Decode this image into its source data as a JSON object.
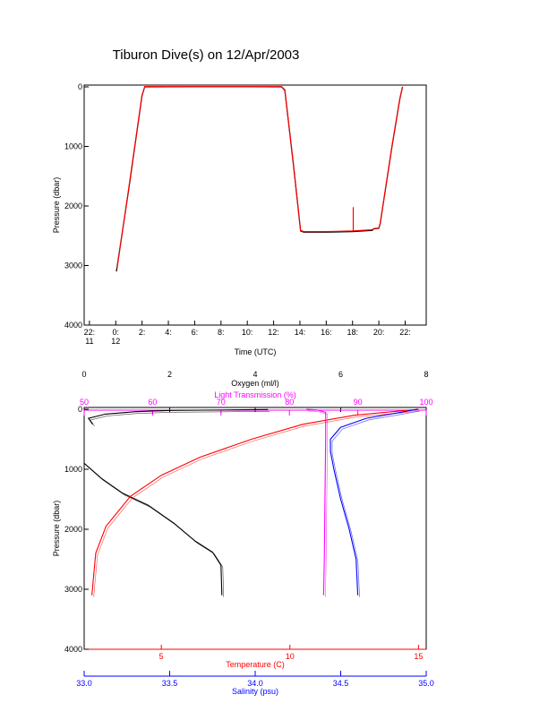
{
  "title": "Tiburon Dive(s) on 12/Apr/2003",
  "colors": {
    "axis": "#000000",
    "temperature": "#ff0000",
    "salinity": "#0000ff",
    "oxygen": "#000000",
    "light": "#ff00ff"
  },
  "chart_data": [
    {
      "type": "line",
      "xlabel": "Time (UTC)",
      "ylabel": "Pressure (dbar)",
      "x_unit": "hours since 00:00 UTC 12/Apr/2003",
      "xlim": [
        -2.4,
        23.6
      ],
      "ylim": [
        4000,
        -30
      ],
      "x_ticks": [
        -2,
        0,
        2,
        4,
        6,
        8,
        10,
        12,
        14,
        16,
        18,
        20,
        22
      ],
      "x_tick_labels": [
        {
          "time": "22:",
          "day": "11"
        },
        {
          "time": "0:",
          "day": "12"
        },
        {
          "time": "2:",
          "day": ""
        },
        {
          "time": "4:",
          "day": ""
        },
        {
          "time": "6:",
          "day": ""
        },
        {
          "time": "8:",
          "day": ""
        },
        {
          "time": "10:",
          "day": ""
        },
        {
          "time": "12:",
          "day": ""
        },
        {
          "time": "14:",
          "day": ""
        },
        {
          "time": "16:",
          "day": ""
        },
        {
          "time": "18:",
          "day": ""
        },
        {
          "time": "20:",
          "day": ""
        },
        {
          "time": "22:",
          "day": ""
        }
      ],
      "y_ticks": [
        0,
        1000,
        2000,
        3000,
        4000
      ],
      "series": [
        {
          "color": "#000000",
          "x": [
            0.05,
            1.0,
            2.0,
            2.2,
            6.0,
            10.0,
            12.6,
            12.85,
            13.5,
            14.05,
            14.3,
            16.0,
            18.0,
            19.5,
            19.6,
            20.0,
            20.1,
            21.0,
            21.6,
            21.8
          ],
          "y": [
            3100,
            1700,
            150,
            0,
            -3,
            -3,
            0,
            60,
            1300,
            2420,
            2440,
            2440,
            2430,
            2410,
            2385,
            2375,
            2300,
            1000,
            200,
            0
          ]
        },
        {
          "color": "#ff0000",
          "x": [
            0.1,
            1.0,
            2.0,
            2.2,
            6.0,
            10.0,
            12.6,
            12.85,
            13.5,
            14.05,
            14.3,
            16.0,
            18.0,
            19.5,
            19.6,
            20.0,
            20.1,
            21.0,
            21.6,
            21.8
          ],
          "y": [
            3050,
            1680,
            140,
            -5,
            -5,
            -5,
            -5,
            50,
            1280,
            2410,
            2430,
            2430,
            2420,
            2400,
            2380,
            2370,
            2290,
            990,
            190,
            -5
          ]
        },
        {
          "color": "#ff0000",
          "x": [
            18.05,
            18.05
          ],
          "y": [
            2020,
            2420
          ]
        }
      ]
    },
    {
      "type": "scatter",
      "ylabel": "Pressure (dbar)",
      "ylim": [
        4000,
        -30
      ],
      "y_ticks": [
        0,
        1000,
        2000,
        3000,
        4000
      ],
      "axes": {
        "oxygen": {
          "label": "Oxygen (ml/l)",
          "lim": [
            0,
            8
          ],
          "ticks": [
            0,
            2,
            4,
            6,
            8
          ]
        },
        "light": {
          "label": "Light Transmission (%)",
          "lim": [
            50,
            100
          ],
          "ticks": [
            50,
            60,
            70,
            80,
            90,
            100
          ]
        },
        "temperature": {
          "label": "Temperature (C)",
          "lim": [
            2.0,
            15.3
          ],
          "ticks": [
            5,
            10,
            15
          ]
        },
        "salinity": {
          "label": "Salinity (psu)",
          "lim": [
            33.0,
            35.0
          ],
          "ticks": [
            33.0,
            33.5,
            34.0,
            34.5,
            35.0
          ],
          "tick_labels": [
            "33.0",
            "33.5",
            "34.0",
            "34.5",
            "35.0"
          ]
        }
      },
      "series": [
        {
          "axis": "oxygen",
          "color": "#000000",
          "x": [
            0.2,
            0.1,
            0.5,
            1.2,
            2.0,
            3.5,
            4.3
          ],
          "y": [
            250,
            150,
            80,
            40,
            20,
            10,
            5
          ]
        },
        {
          "axis": "oxygen",
          "color": "#000000",
          "x": [
            0.0,
            0.4,
            0.9,
            1.5,
            2.1,
            2.6,
            3.0,
            3.2,
            3.22
          ],
          "y": [
            900,
            1150,
            1400,
            1600,
            1900,
            2200,
            2380,
            2600,
            3100
          ]
        },
        {
          "axis": "temperature",
          "color": "#ff0000",
          "x": [
            2.3,
            2.45,
            2.85,
            3.8,
            5.0,
            6.5,
            8.5,
            10.5,
            12.5,
            14.5,
            15.0
          ],
          "y": [
            3100,
            2400,
            1950,
            1450,
            1100,
            800,
            500,
            250,
            100,
            20,
            0
          ]
        },
        {
          "axis": "salinity",
          "color": "#0000ff",
          "x": [
            34.6,
            34.59,
            34.55,
            34.5,
            34.46,
            34.44,
            34.44,
            34.5,
            34.65,
            34.85,
            34.95
          ],
          "y": [
            3100,
            2500,
            2000,
            1500,
            1000,
            700,
            500,
            300,
            150,
            50,
            0
          ]
        },
        {
          "axis": "light",
          "color": "#ff00ff",
          "x": [
            85.0,
            85.1,
            85.2,
            85.3,
            85.3,
            84.0,
            82.5
          ],
          "y": [
            3100,
            2500,
            1500,
            500,
            50,
            10,
            0
          ]
        }
      ]
    }
  ]
}
